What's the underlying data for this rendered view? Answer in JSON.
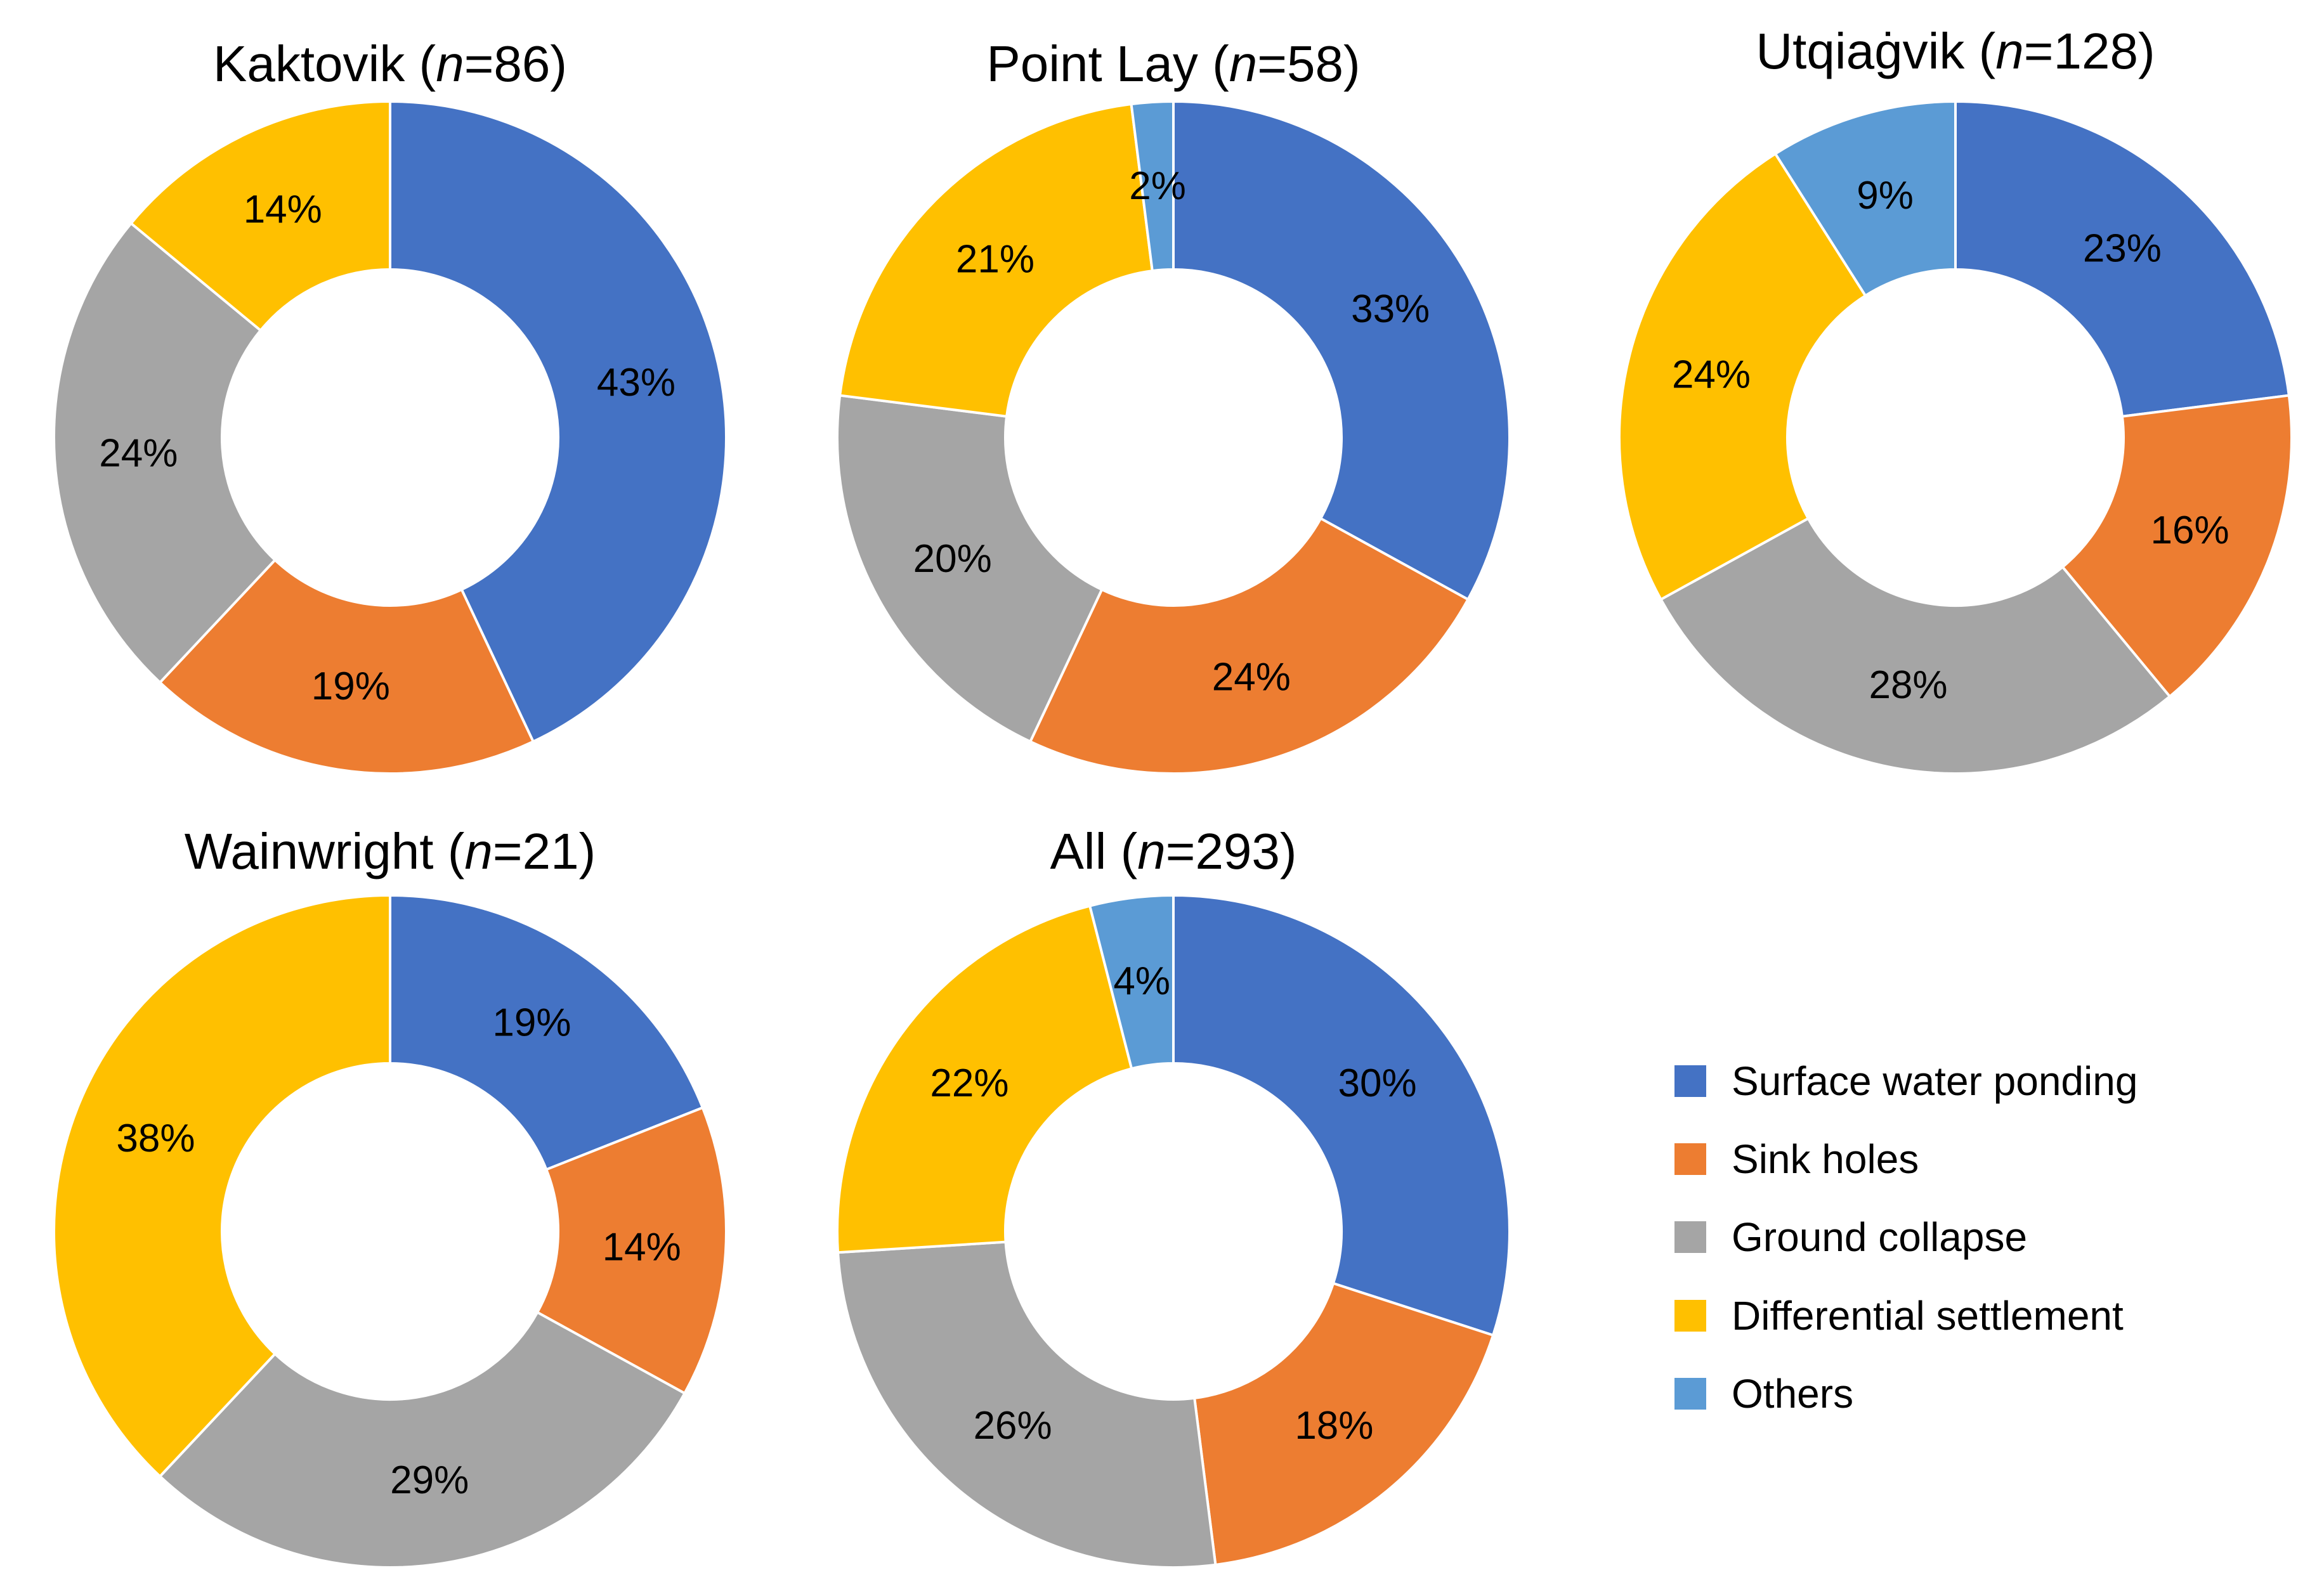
{
  "legend": {
    "items": [
      {
        "label": "Surface water ponding",
        "color": "#4472C4"
      },
      {
        "label": "Sink holes",
        "color": "#ED7D31"
      },
      {
        "label": "Ground collapse",
        "color": "#A5A5A5"
      },
      {
        "label": "Differential settlement",
        "color": "#FFC000"
      },
      {
        "label": "Others",
        "color": "#5B9BD5"
      }
    ]
  },
  "chart_data": [
    {
      "type": "pie",
      "style": "donut",
      "title": "Kaktovik",
      "n_prefix": "(",
      "n_symbol": "n",
      "n_value": "=86)",
      "categories": [
        "Surface water ponding",
        "Sink holes",
        "Ground collapse",
        "Differential settlement",
        "Others"
      ],
      "values": [
        43,
        19,
        24,
        14,
        0
      ],
      "labels": [
        "43%",
        "19%",
        "24%",
        "14%",
        ""
      ]
    },
    {
      "type": "pie",
      "style": "donut",
      "title": "Point Lay",
      "n_prefix": "(",
      "n_symbol": "n",
      "n_value": "=58)",
      "categories": [
        "Surface water ponding",
        "Sink holes",
        "Ground collapse",
        "Differential settlement",
        "Others"
      ],
      "values": [
        33,
        24,
        20,
        21,
        2
      ],
      "labels": [
        "33%",
        "24%",
        "20%",
        "21%",
        "2%"
      ]
    },
    {
      "type": "pie",
      "style": "donut",
      "title": "Utqiaġvik",
      "n_prefix": "(",
      "n_symbol": "n",
      "n_value": "=128)",
      "categories": [
        "Surface water ponding",
        "Sink holes",
        "Ground collapse",
        "Differential settlement",
        "Others"
      ],
      "values": [
        23,
        16,
        28,
        24,
        9
      ],
      "labels": [
        "23%",
        "16%",
        "28%",
        "24%",
        "9%"
      ]
    },
    {
      "type": "pie",
      "style": "donut",
      "title": "Wainwright",
      "n_prefix": "(",
      "n_symbol": "n",
      "n_value": "=21)",
      "categories": [
        "Surface water ponding",
        "Sink holes",
        "Ground collapse",
        "Differential settlement",
        "Others"
      ],
      "values": [
        19,
        14,
        29,
        38,
        0
      ],
      "labels": [
        "19%",
        "14%",
        "29%",
        "38%",
        ""
      ]
    },
    {
      "type": "pie",
      "style": "donut",
      "title": "All",
      "n_prefix": "(",
      "n_symbol": "n",
      "n_value": "=293)",
      "categories": [
        "Surface water ponding",
        "Sink holes",
        "Ground collapse",
        "Differential settlement",
        "Others"
      ],
      "values": [
        30,
        18,
        26,
        22,
        4
      ],
      "labels": [
        "30%",
        "18%",
        "26%",
        "22%",
        "4%"
      ]
    }
  ]
}
